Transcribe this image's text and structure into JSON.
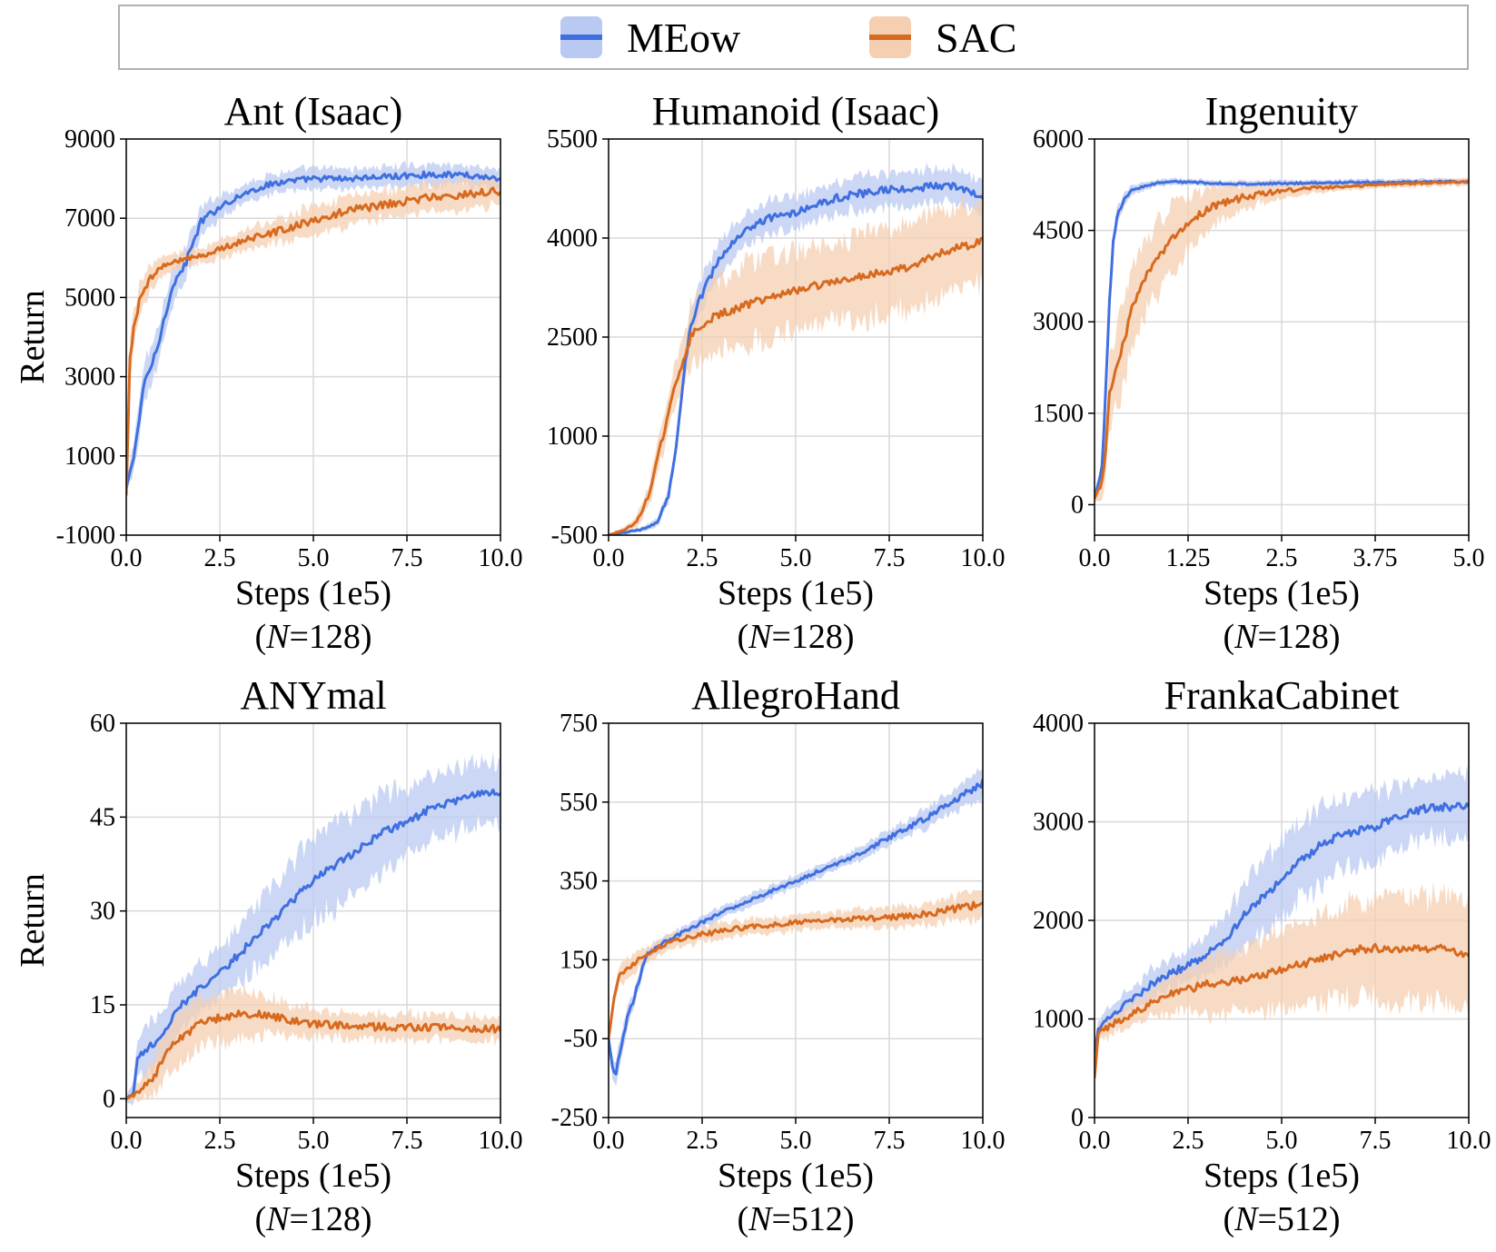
{
  "legend": {
    "placement": "top-center",
    "entries": [
      {
        "name": "MEow",
        "line_color": "#3f6fe0",
        "band_color": "#b9c9f2"
      },
      {
        "name": "SAC",
        "line_color": "#d86a1f",
        "band_color": "#f4cfb2"
      }
    ]
  },
  "chart_data": [
    {
      "type": "line",
      "title": "Ant (Isaac)",
      "xlabel": "Steps (1e5)",
      "n_label": "(N=128)",
      "n_value": "128",
      "ylabel": "Return",
      "xlim": [
        0,
        10
      ],
      "ylim": [
        -1000,
        9000
      ],
      "xticks": [
        0,
        2.5,
        5,
        7.5,
        10
      ],
      "xtick_labels": [
        "0.0",
        "2.5",
        "5.0",
        "7.5",
        "10.0"
      ],
      "yticks": [
        -1000,
        1000,
        3000,
        5000,
        7000,
        9000
      ],
      "ytick_labels": [
        "-1000",
        "1000",
        "3000",
        "5000",
        "7000",
        "9000"
      ],
      "grid": true,
      "series": [
        {
          "name": "MEow",
          "x": [
            0,
            0.2,
            0.5,
            0.8,
            1.2,
            1.6,
            2.0,
            2.5,
            3.0,
            3.5,
            4.0,
            4.5,
            5.0,
            6.0,
            7.0,
            8.0,
            9.0,
            10.0
          ],
          "y": [
            200,
            1000,
            2900,
            3600,
            5200,
            5900,
            6900,
            7300,
            7550,
            7750,
            7900,
            7950,
            8000,
            8000,
            8050,
            8100,
            8100,
            8000
          ],
          "band": [
            100,
            400,
            500,
            500,
            450,
            400,
            350,
            300,
            250,
            250,
            250,
            250,
            250,
            250,
            250,
            250,
            250,
            250
          ]
        },
        {
          "name": "SAC",
          "x": [
            0,
            0.1,
            0.2,
            0.35,
            0.5,
            0.8,
            1.0,
            1.5,
            2.0,
            3.0,
            4.0,
            5.0,
            6.0,
            7.0,
            8.0,
            9.0,
            10.0
          ],
          "y": [
            0,
            3500,
            4200,
            4900,
            5300,
            5650,
            5800,
            5950,
            6050,
            6400,
            6650,
            6950,
            7200,
            7350,
            7500,
            7600,
            7700
          ],
          "band": [
            100,
            500,
            450,
            400,
            350,
            300,
            250,
            200,
            200,
            250,
            300,
            350,
            350,
            350,
            350,
            350,
            350
          ]
        }
      ]
    },
    {
      "type": "line",
      "title": "Humanoid (Isaac)",
      "xlabel": "Steps (1e5)",
      "n_label": "(N=128)",
      "n_value": "128",
      "ylabel": "",
      "xlim": [
        0,
        10
      ],
      "ylim": [
        -500,
        5500
      ],
      "xticks": [
        0,
        2.5,
        5,
        7.5,
        10
      ],
      "xtick_labels": [
        "0.0",
        "2.5",
        "5.0",
        "7.5",
        "10.0"
      ],
      "yticks": [
        -500,
        1000,
        2500,
        4000,
        5500
      ],
      "ytick_labels": [
        "-500",
        "1000",
        "2500",
        "4000",
        "5500"
      ],
      "grid": true,
      "series": [
        {
          "name": "MEow",
          "x": [
            0,
            0.5,
            1.0,
            1.3,
            1.6,
            1.8,
            2.0,
            2.2,
            2.6,
            3.0,
            3.5,
            4.0,
            5.0,
            6.0,
            7.0,
            8.0,
            9.0,
            10.0
          ],
          "y": [
            -500,
            -450,
            -400,
            -300,
            100,
            800,
            1900,
            2700,
            3300,
            3700,
            4050,
            4250,
            4400,
            4600,
            4700,
            4750,
            4800,
            4650
          ],
          "band": [
            20,
            30,
            40,
            60,
            100,
            150,
            200,
            250,
            250,
            250,
            250,
            250,
            250,
            250,
            250,
            250,
            250,
            250
          ]
        },
        {
          "name": "SAC",
          "x": [
            0,
            0.5,
            0.8,
            1.0,
            1.2,
            1.5,
            1.8,
            2.2,
            2.6,
            3.0,
            4.0,
            5.0,
            6.0,
            7.0,
            8.0,
            9.0,
            10.0
          ],
          "y": [
            -500,
            -400,
            -250,
            0,
            400,
            1100,
            1800,
            2500,
            2750,
            2850,
            3050,
            3200,
            3350,
            3450,
            3550,
            3800,
            3950
          ],
          "band": [
            20,
            50,
            100,
            150,
            200,
            300,
            350,
            450,
            500,
            550,
            600,
            600,
            600,
            650,
            650,
            650,
            650
          ]
        }
      ]
    },
    {
      "type": "line",
      "title": "Ingenuity",
      "xlabel": "Steps (1e5)",
      "n_label": "(N=128)",
      "n_value": "128",
      "ylabel": "",
      "xlim": [
        0,
        5
      ],
      "ylim": [
        -500,
        6000
      ],
      "xticks": [
        0,
        1.25,
        2.5,
        3.75,
        5
      ],
      "xtick_labels": [
        "0.0",
        "1.25",
        "2.5",
        "3.75",
        "5.0"
      ],
      "yticks": [
        0,
        1500,
        3000,
        4500,
        6000
      ],
      "ytick_labels": [
        "0",
        "1500",
        "3000",
        "4500",
        "6000"
      ],
      "grid": true,
      "series": [
        {
          "name": "MEow",
          "x": [
            0,
            0.1,
            0.15,
            0.2,
            0.25,
            0.3,
            0.4,
            0.5,
            0.7,
            1.0,
            1.5,
            2.0,
            2.5,
            3.0,
            3.5,
            4.0,
            4.5,
            5.0
          ],
          "y": [
            100,
            600,
            1900,
            3400,
            4300,
            4750,
            5000,
            5150,
            5250,
            5300,
            5280,
            5260,
            5270,
            5280,
            5290,
            5290,
            5300,
            5300
          ],
          "band": [
            50,
            150,
            250,
            250,
            200,
            150,
            100,
            80,
            60,
            50,
            50,
            50,
            50,
            50,
            50,
            50,
            50,
            50
          ]
        },
        {
          "name": "SAC",
          "x": [
            0,
            0.1,
            0.15,
            0.2,
            0.3,
            0.4,
            0.5,
            0.7,
            1.0,
            1.3,
            1.6,
            2.0,
            2.5,
            3.0,
            3.5,
            4.0,
            4.5,
            5.0
          ],
          "y": [
            100,
            400,
            900,
            1800,
            2300,
            2700,
            3200,
            3800,
            4300,
            4700,
            4900,
            5050,
            5150,
            5200,
            5230,
            5260,
            5280,
            5300
          ],
          "band": [
            50,
            250,
            400,
            550,
            650,
            700,
            700,
            650,
            550,
            400,
            300,
            200,
            120,
            80,
            60,
            60,
            60,
            60
          ]
        }
      ]
    },
    {
      "type": "line",
      "title": "ANYmal",
      "xlabel": "Steps (1e5)",
      "n_label": "(N=128)",
      "n_value": "128",
      "ylabel": "Return",
      "xlim": [
        0,
        10
      ],
      "ylim": [
        -3,
        60
      ],
      "xticks": [
        0,
        2.5,
        5,
        7.5,
        10
      ],
      "xtick_labels": [
        "0.0",
        "2.5",
        "5.0",
        "7.5",
        "10.0"
      ],
      "yticks": [
        0,
        15,
        30,
        45,
        60
      ],
      "ytick_labels": [
        "0",
        "15",
        "30",
        "45",
        "60"
      ],
      "grid": true,
      "series": [
        {
          "name": "MEow",
          "x": [
            0,
            0.2,
            0.3,
            0.5,
            0.8,
            1.0,
            1.5,
            2.0,
            2.5,
            3.0,
            3.5,
            4.0,
            4.5,
            5.0,
            5.5,
            6.0,
            6.5,
            7.0,
            7.5,
            8.0,
            8.5,
            9.0,
            9.5,
            10.0
          ],
          "y": [
            0,
            1,
            6,
            8,
            9,
            11,
            15,
            18,
            20,
            23,
            26,
            29,
            32,
            35,
            37,
            39,
            41,
            43,
            44,
            46,
            47,
            48,
            49,
            49
          ],
          "band": [
            0.5,
            2,
            3,
            3.5,
            4,
            4,
            4,
            4,
            4,
            4.5,
            5,
            5.5,
            6,
            6.5,
            6.5,
            6.5,
            6.5,
            6,
            5.5,
            5,
            5,
            5,
            5,
            5
          ]
        },
        {
          "name": "SAC",
          "x": [
            0,
            0.2,
            0.5,
            0.8,
            1.0,
            1.5,
            2.0,
            2.5,
            3.0,
            3.5,
            4.0,
            4.5,
            5.0,
            5.5,
            6.0,
            6.5,
            7.0,
            7.5,
            8.0,
            8.5,
            9.0,
            9.5,
            10.0
          ],
          "y": [
            0,
            0.5,
            2,
            4,
            7,
            10,
            12,
            13,
            13.5,
            13.5,
            13,
            12.5,
            12,
            11.8,
            11.6,
            11.5,
            11.5,
            11.5,
            11.4,
            11.3,
            11.2,
            11.2,
            11.2
          ],
          "band": [
            0.5,
            1,
            2,
            3,
            3.5,
            4,
            4,
            4,
            4,
            3.5,
            3,
            2.5,
            2.2,
            2,
            2,
            2,
            2,
            2,
            2,
            2,
            2,
            2,
            2
          ]
        }
      ]
    },
    {
      "type": "line",
      "title": "AllegroHand",
      "xlabel": "Steps (1e5)",
      "n_label": "(N=512)",
      "n_value": "512",
      "ylabel": "",
      "xlim": [
        0,
        10
      ],
      "ylim": [
        -250,
        750
      ],
      "xticks": [
        0,
        2.5,
        5,
        7.5,
        10
      ],
      "xtick_labels": [
        "0.0",
        "2.5",
        "5.0",
        "7.5",
        "10.0"
      ],
      "yticks": [
        -250,
        -50,
        150,
        350,
        550,
        750
      ],
      "ytick_labels": [
        "-250",
        "-50",
        "150",
        "350",
        "550",
        "750"
      ],
      "grid": true,
      "series": [
        {
          "name": "MEow",
          "x": [
            0,
            0.1,
            0.2,
            0.3,
            0.5,
            0.7,
            1.0,
            1.5,
            2.0,
            2.5,
            3.0,
            3.5,
            4.0,
            4.5,
            5.0,
            5.5,
            6.0,
            6.5,
            7.0,
            7.5,
            8.0,
            8.5,
            9.0,
            9.5,
            10.0
          ],
          "y": [
            -50,
            -120,
            -140,
            -80,
            0,
            60,
            160,
            195,
            220,
            245,
            270,
            290,
            310,
            330,
            350,
            370,
            390,
            410,
            435,
            460,
            485,
            510,
            540,
            570,
            600
          ],
          "band": [
            10,
            25,
            30,
            30,
            25,
            20,
            15,
            15,
            15,
            15,
            15,
            15,
            15,
            15,
            15,
            15,
            15,
            15,
            20,
            20,
            20,
            25,
            25,
            30,
            35
          ]
        },
        {
          "name": "SAC",
          "x": [
            0,
            0.1,
            0.2,
            0.3,
            0.5,
            0.8,
            1.0,
            1.5,
            2.0,
            2.5,
            3.0,
            3.5,
            4.0,
            5.0,
            6.0,
            7.0,
            8.0,
            9.0,
            10.0
          ],
          "y": [
            -50,
            20,
            80,
            110,
            130,
            150,
            165,
            190,
            205,
            215,
            222,
            230,
            235,
            245,
            250,
            255,
            260,
            275,
            290
          ],
          "band": [
            10,
            20,
            25,
            25,
            25,
            25,
            20,
            20,
            20,
            20,
            20,
            20,
            20,
            20,
            20,
            25,
            25,
            30,
            35
          ]
        }
      ]
    },
    {
      "type": "line",
      "title": "FrankaCabinet",
      "xlabel": "Steps (1e5)",
      "n_label": "(N=512)",
      "n_value": "512",
      "ylabel": "",
      "xlim": [
        0,
        10
      ],
      "ylim": [
        0,
        4000
      ],
      "xticks": [
        0,
        2.5,
        5,
        7.5,
        10
      ],
      "xtick_labels": [
        "0.0",
        "2.5",
        "5.0",
        "7.5",
        "10.0"
      ],
      "yticks": [
        0,
        1000,
        2000,
        3000,
        4000
      ],
      "ytick_labels": [
        "0",
        "1000",
        "2000",
        "3000",
        "4000"
      ],
      "grid": true,
      "series": [
        {
          "name": "MEow",
          "x": [
            0,
            0.1,
            0.3,
            0.5,
            1.0,
            1.5,
            2.0,
            2.5,
            3.0,
            3.5,
            4.0,
            4.5,
            5.0,
            5.5,
            6.0,
            6.5,
            7.0,
            7.5,
            8.0,
            8.5,
            9.0,
            9.5,
            10.0
          ],
          "y": [
            650,
            900,
            1000,
            1050,
            1200,
            1350,
            1450,
            1550,
            1650,
            1800,
            2050,
            2250,
            2400,
            2600,
            2750,
            2850,
            2900,
            2950,
            3050,
            3100,
            3150,
            3150,
            3150
          ],
          "band": [
            50,
            80,
            100,
            100,
            120,
            150,
            150,
            150,
            200,
            250,
            300,
            350,
            400,
            400,
            400,
            350,
            350,
            350,
            300,
            300,
            300,
            300,
            300
          ]
        },
        {
          "name": "SAC",
          "x": [
            0,
            0.1,
            0.3,
            0.5,
            1.0,
            1.5,
            2.0,
            2.5,
            3.0,
            3.5,
            4.0,
            4.5,
            5.0,
            5.5,
            6.0,
            6.5,
            7.0,
            7.5,
            8.0,
            8.5,
            9.0,
            9.5,
            10.0
          ],
          "y": [
            400,
            850,
            900,
            950,
            1050,
            1150,
            1250,
            1300,
            1350,
            1380,
            1400,
            1450,
            1500,
            1550,
            1600,
            1650,
            1700,
            1720,
            1700,
            1720,
            1720,
            1700,
            1650
          ],
          "band": [
            50,
            80,
            100,
            100,
            120,
            150,
            200,
            250,
            300,
            330,
            350,
            380,
            400,
            420,
            450,
            480,
            500,
            520,
            520,
            520,
            520,
            520,
            520
          ]
        }
      ]
    }
  ]
}
